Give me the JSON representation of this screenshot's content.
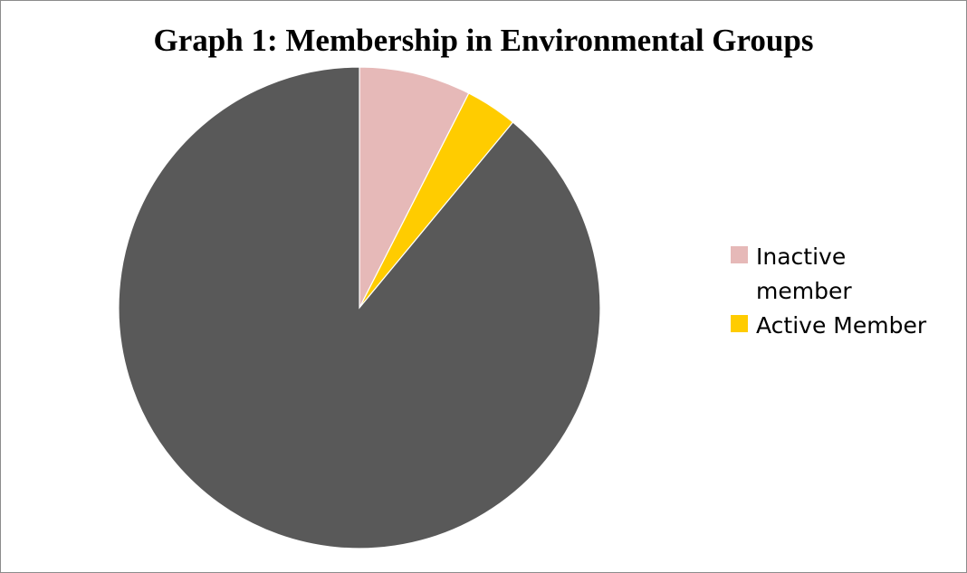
{
  "chart_data": {
    "type": "pie",
    "title": "Graph 1: Membership in Environmental Groups",
    "slices": [
      {
        "label": "Inactive member",
        "value": 7.5,
        "color": "#e6b9b8"
      },
      {
        "label": "Active Member",
        "value": 3.5,
        "color": "#ffcc00"
      },
      {
        "label": "",
        "value": 89,
        "color": "#595959"
      }
    ],
    "legend_position": "right"
  },
  "legend": {
    "items": [
      {
        "label": "Inactive member",
        "color": "#e6b9b8"
      },
      {
        "label": "Active Member",
        "color": "#ffcc00"
      }
    ]
  }
}
